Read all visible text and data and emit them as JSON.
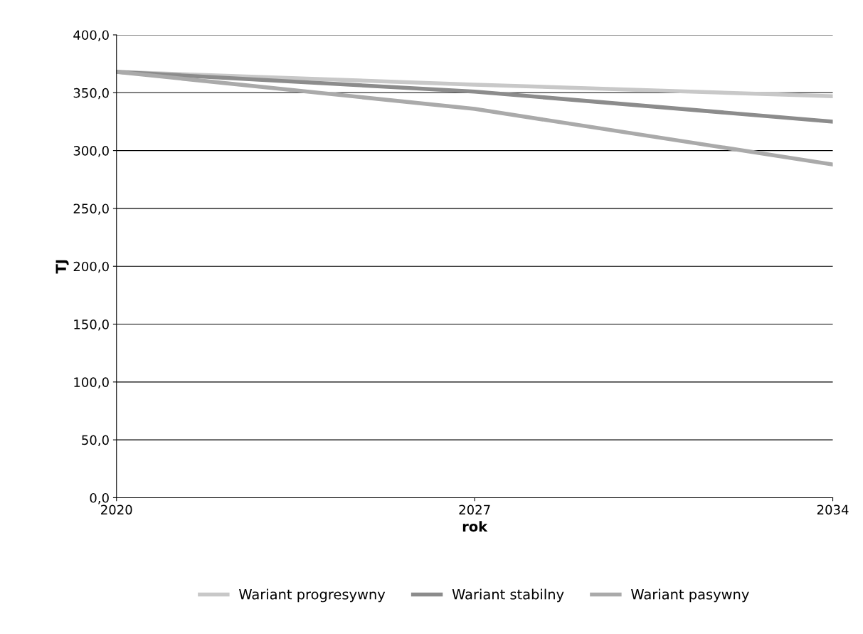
{
  "chart_data": {
    "type": "line",
    "xlabel": "rok",
    "ylabel": "TJ",
    "categories": [
      "2020",
      "2027",
      "2034"
    ],
    "series": [
      {
        "name": "Wariant progresywny",
        "color": "#c8c8c8",
        "values": [
          368,
          357,
          347
        ]
      },
      {
        "name": "Wariant stabilny",
        "color": "#8c8c8c",
        "values": [
          368,
          351,
          325
        ]
      },
      {
        "name": "Wariant pasywny",
        "color": "#aaaaaa",
        "values": [
          368,
          336,
          288
        ]
      }
    ],
    "ylim": [
      0,
      400
    ],
    "yticks": [
      {
        "value": 0,
        "label": "0,0"
      },
      {
        "value": 50,
        "label": "50,0"
      },
      {
        "value": 100,
        "label": "100,0"
      },
      {
        "value": 150,
        "label": "150,0"
      },
      {
        "value": 200,
        "label": "200,0"
      },
      {
        "value": 250,
        "label": "250,0"
      },
      {
        "value": 300,
        "label": "300,0"
      },
      {
        "value": 350,
        "label": "350,0"
      },
      {
        "value": 400,
        "label": "400,0"
      }
    ],
    "grid": "y",
    "legend": "bottom",
    "marker": "none",
    "line_style": "solid"
  }
}
